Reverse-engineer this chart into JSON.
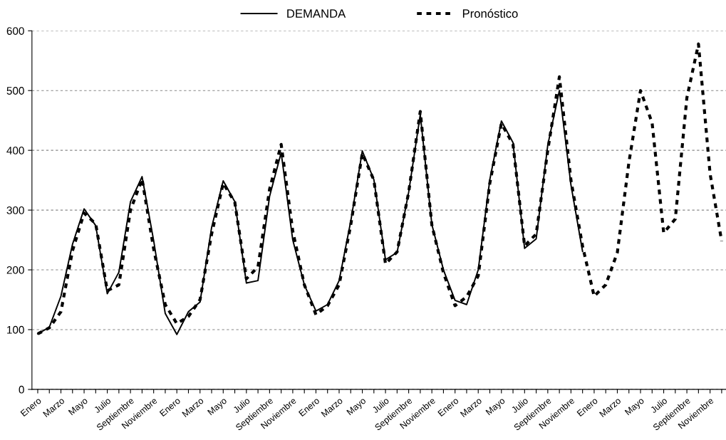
{
  "chart_data": {
    "type": "line",
    "categories": [
      "Enero",
      null,
      "Marzo",
      null,
      "Mayo",
      null,
      "Julio",
      null,
      "Septiembre",
      null,
      "Noviembre",
      null,
      "Enero",
      null,
      "Marzo",
      null,
      "Mayo",
      null,
      "Julio",
      null,
      "Septiembre",
      null,
      "Noviembre",
      null,
      "Enero",
      null,
      "Marzo",
      null,
      "Mayo",
      null,
      "Julio",
      null,
      "Septiembre",
      null,
      "Noviembre",
      null,
      "Enero",
      null,
      "Marzo",
      null,
      "Mayo",
      null,
      "Julio",
      null,
      "Septiembre",
      null,
      "Noviembre",
      null,
      "Enero",
      null,
      "Marzo",
      null,
      "Mayo",
      null,
      "Julio",
      null,
      "Septiembre",
      null,
      "Noviembre",
      null
    ],
    "series": [
      {
        "name": "DEMANDA",
        "color": "#000000",
        "line_style": "solid",
        "values": [
          93,
          104,
          156,
          243,
          302,
          274,
          160,
          196,
          314,
          356,
          249,
          127,
          92,
          130,
          146,
          271,
          349,
          314,
          178,
          182,
          323,
          396,
          250,
          175,
          131,
          142,
          182,
          281,
          399,
          351,
          217,
          229,
          330,
          460,
          276,
          200,
          149,
          142,
          200,
          351,
          449,
          413,
          236,
          252,
          409,
          500,
          342,
          231,
          null,
          null,
          null,
          null,
          null,
          null,
          null,
          null,
          null,
          null,
          null,
          null
        ]
      },
      {
        "name": "Pronóstico",
        "color": "#000000",
        "line_style": "dashed",
        "values": [
          93,
          103,
          130,
          232,
          295,
          277,
          165,
          175,
          300,
          352,
          235,
          142,
          110,
          122,
          150,
          260,
          345,
          313,
          185,
          205,
          335,
          410,
          265,
          175,
          125,
          140,
          175,
          275,
          395,
          350,
          210,
          230,
          330,
          465,
          275,
          195,
          140,
          155,
          190,
          345,
          445,
          410,
          240,
          260,
          400,
          523,
          350,
          240,
          156,
          175,
          229,
          380,
          500,
          446,
          262,
          285,
          488,
          578,
          361,
          248
        ]
      }
    ],
    "ylim": [
      0,
      600
    ],
    "yticks": [
      0,
      100,
      200,
      300,
      400,
      500,
      600
    ],
    "grid": "y",
    "legend": "top"
  }
}
